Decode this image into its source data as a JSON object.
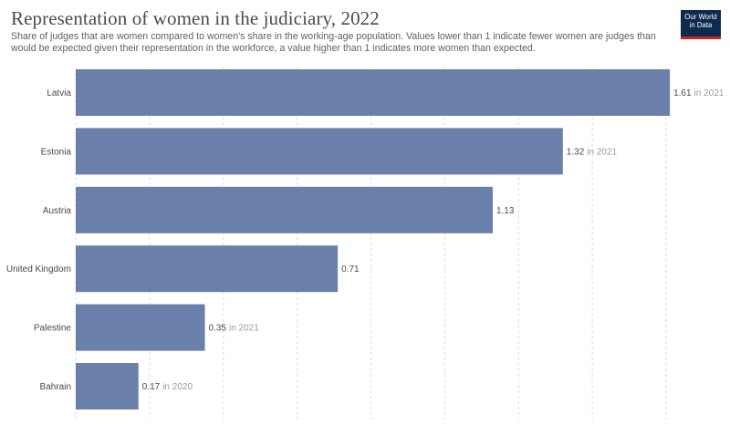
{
  "header": {
    "title": "Representation of women in the judiciary, 2022",
    "subtitle": "Share of judges that are women compared to women's share in the working-age population. Values lower than 1 indicate fewer women are judges than would be expected given their representation in the workforce, a value higher than 1 indicates more women than expected.",
    "logo_line1": "Our World",
    "logo_line2": "in Data"
  },
  "colors": {
    "bar": "#6a7fa9",
    "logo_bg": "#0f2a4f",
    "logo_accent": "#ce261e"
  },
  "chart_data": {
    "type": "bar",
    "orientation": "horizontal",
    "title": "Representation of women in the judiciary, 2022",
    "categories": [
      "Latvia",
      "Estonia",
      "Austria",
      "United Kingdom",
      "Palestine",
      "Bahrain"
    ],
    "values": [
      1.61,
      1.32,
      1.13,
      0.71,
      0.35,
      0.17
    ],
    "value_labels": [
      "1.61",
      "1.32",
      "1.13",
      "0.71",
      "0.35",
      "0.17"
    ],
    "year_notes": [
      "in 2021",
      "in 2021",
      "",
      "",
      "in 2021",
      "in 2020"
    ],
    "xlim": [
      0,
      1.6
    ],
    "gridlines": [
      0,
      0.2,
      0.4,
      0.6,
      0.8,
      1.0,
      1.2,
      1.4,
      1.6
    ],
    "grid": true,
    "legend": "none"
  }
}
